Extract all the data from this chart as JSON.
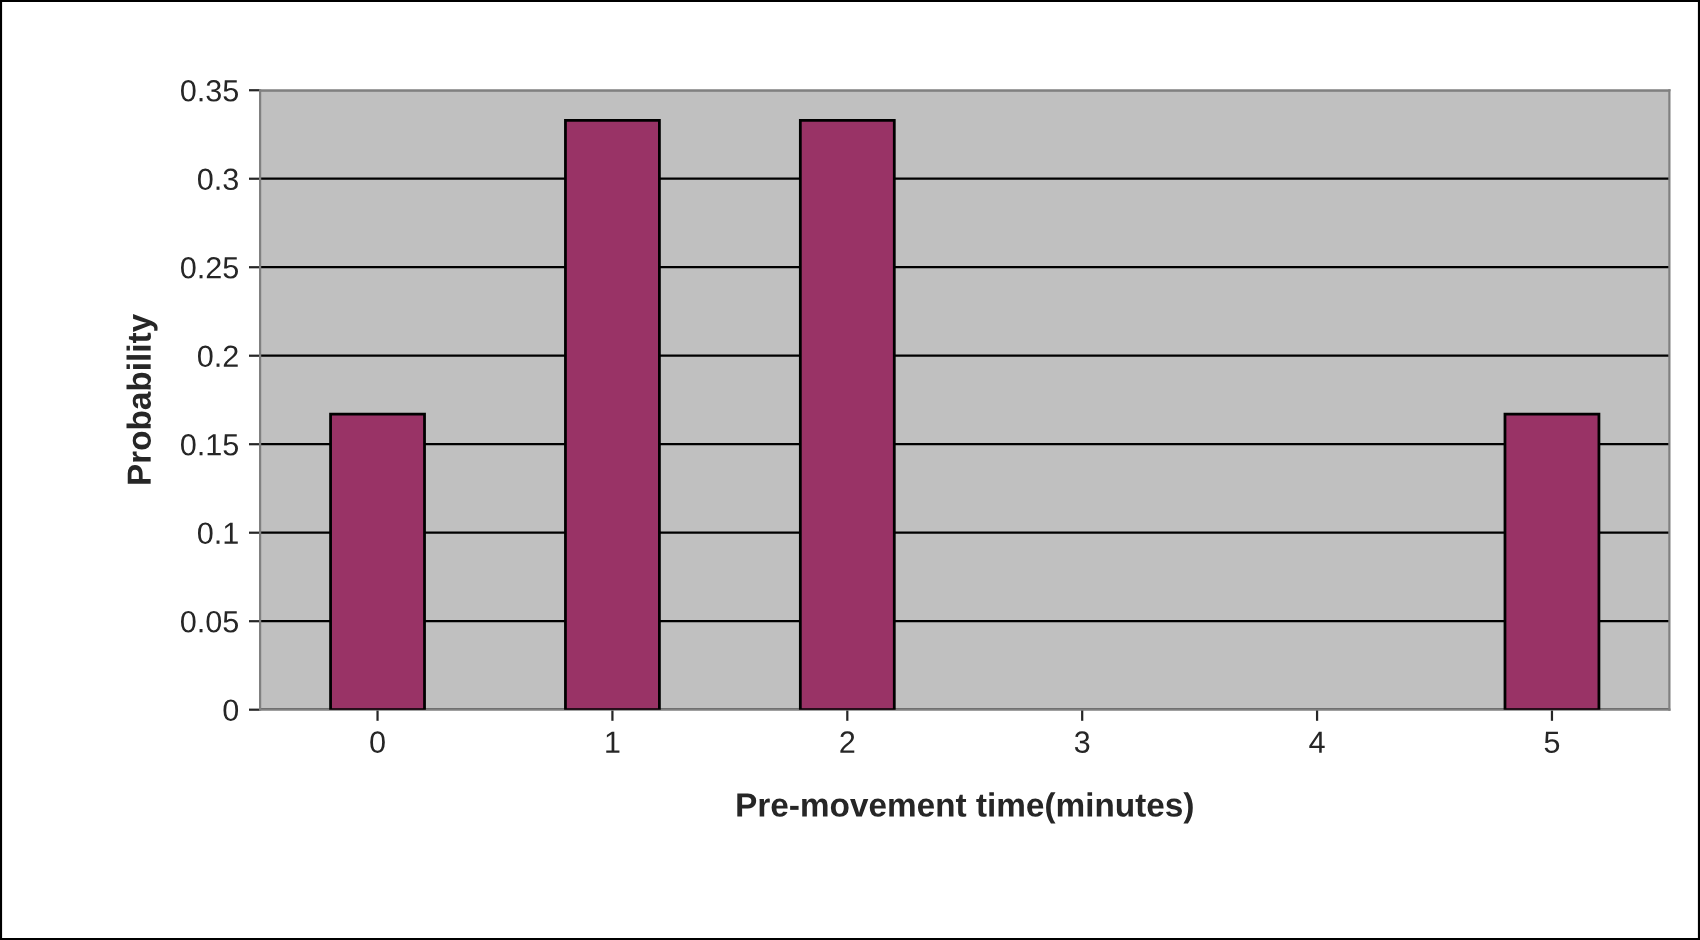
{
  "chart_data": {
    "type": "bar",
    "categories": [
      "0",
      "1",
      "2",
      "3",
      "4",
      "5"
    ],
    "values": [
      0.167,
      0.333,
      0.333,
      0,
      0,
      0.167
    ],
    "color": "#993366",
    "xlabel": "Pre-movement time(minutes)",
    "ylabel": "Probability",
    "ylim": [
      0,
      0.35
    ],
    "yticks": [
      0,
      0.05,
      0.1,
      0.15,
      0.2,
      0.25,
      0.3,
      0.35
    ],
    "grid": "y",
    "legend": false
  }
}
